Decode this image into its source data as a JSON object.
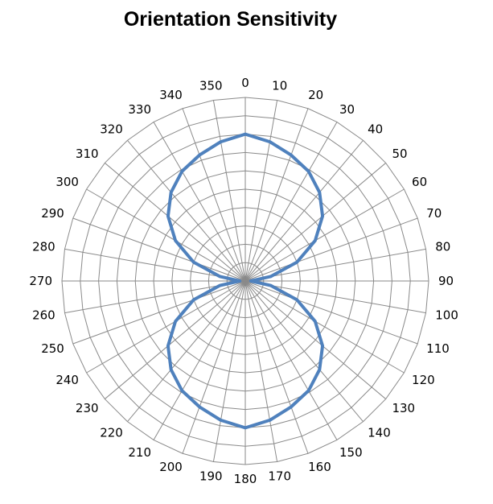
{
  "chart_data": {
    "type": "line",
    "subtype": "polar",
    "title": "Orientation Sensitivity",
    "angle_unit": "degrees",
    "angle_direction": "clockwise",
    "zero_at": "top",
    "angle_labels": [
      "0",
      "10",
      "20",
      "30",
      "40",
      "50",
      "60",
      "70",
      "80",
      "90",
      "100",
      "110",
      "120",
      "130",
      "140",
      "150",
      "160",
      "170",
      "180",
      "190",
      "200",
      "210",
      "220",
      "230",
      "240",
      "250",
      "260",
      "270",
      "280",
      "290",
      "300",
      "310",
      "320",
      "330",
      "340",
      "350"
    ],
    "radial_range": [
      0,
      10
    ],
    "radial_gridlines": 10,
    "grid": true,
    "legend": false,
    "series": [
      {
        "color": "#4F81BD",
        "theta": [
          0,
          10,
          20,
          30,
          40,
          50,
          60,
          70,
          80,
          90,
          100,
          110,
          120,
          130,
          140,
          150,
          160,
          170,
          180,
          190,
          200,
          210,
          220,
          230,
          240,
          250,
          260,
          270,
          280,
          290,
          300,
          310,
          320,
          330,
          340,
          350
        ],
        "r": [
          8.0,
          7.7,
          7.3,
          6.9,
          6.3,
          5.5,
          4.4,
          3.0,
          1.4,
          0.3,
          1.4,
          3.0,
          4.4,
          5.5,
          6.3,
          6.9,
          7.3,
          7.7,
          8.0,
          7.7,
          7.3,
          6.9,
          6.3,
          5.5,
          4.4,
          3.0,
          1.4,
          0.3,
          1.4,
          3.0,
          4.4,
          5.5,
          6.3,
          6.9,
          7.3,
          7.7
        ]
      }
    ]
  }
}
